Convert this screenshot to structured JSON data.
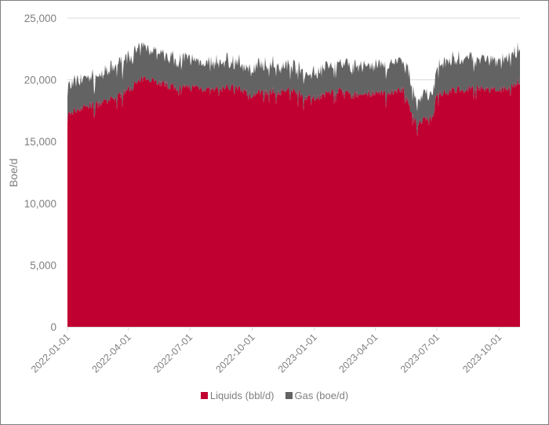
{
  "chart_data": {
    "type": "area",
    "stacked": true,
    "title": "",
    "xlabel": "",
    "ylabel": "Boe/d",
    "ylim": [
      0,
      25000
    ],
    "yticks": [
      0,
      5000,
      10000,
      15000,
      20000,
      25000
    ],
    "ytick_labels": [
      "0",
      "5,000",
      "10,000",
      "15,000",
      "20,000",
      "25,000"
    ],
    "xtick_labels": [
      "2022-01-01",
      "2022-04-01",
      "2022-07-01",
      "2022-10-01",
      "2023-01-01",
      "2023-04-01",
      "2023-07-01",
      "2023-10-01"
    ],
    "x_range": [
      "2022-01-01",
      "2023-11-01"
    ],
    "grid": "horizontal",
    "legend_position": "bottom",
    "x": [
      "2022-01-01",
      "2022-01-15",
      "2022-02-01",
      "2022-02-15",
      "2022-03-01",
      "2022-03-15",
      "2022-04-01",
      "2022-04-15",
      "2022-05-01",
      "2022-05-15",
      "2022-06-01",
      "2022-06-15",
      "2022-07-01",
      "2022-07-15",
      "2022-08-01",
      "2022-08-15",
      "2022-09-01",
      "2022-09-15",
      "2022-10-01",
      "2022-10-15",
      "2022-11-01",
      "2022-11-15",
      "2022-12-01",
      "2022-12-15",
      "2023-01-01",
      "2023-01-15",
      "2023-02-01",
      "2023-02-15",
      "2023-03-01",
      "2023-03-15",
      "2023-04-01",
      "2023-04-15",
      "2023-05-01",
      "2023-05-15",
      "2023-05-25",
      "2023-06-01",
      "2023-06-15",
      "2023-06-25",
      "2023-07-01",
      "2023-07-15",
      "2023-08-01",
      "2023-08-15",
      "2023-09-01",
      "2023-09-15",
      "2023-10-01",
      "2023-10-15",
      "2023-11-01"
    ],
    "series": [
      {
        "name": "Liquids (bbl/d)",
        "color": "#c00030",
        "values": [
          17100,
          17600,
          17900,
          18000,
          18200,
          18600,
          19200,
          19800,
          20200,
          19800,
          19500,
          19300,
          19400,
          19400,
          19100,
          19300,
          19400,
          19200,
          18800,
          19000,
          19100,
          19000,
          19200,
          18700,
          18500,
          18800,
          19100,
          19000,
          18700,
          18900,
          18900,
          18800,
          19100,
          19200,
          17200,
          16500,
          16800,
          16900,
          18900,
          19000,
          19200,
          19300,
          19300,
          19200,
          19100,
          19400,
          19900
        ]
      },
      {
        "name": "Gas (boe/d)",
        "color": "#636363",
        "values": [
          2300,
          2300,
          2300,
          2300,
          2400,
          2600,
          2600,
          2500,
          2500,
          2400,
          2400,
          2300,
          2300,
          2200,
          2200,
          2200,
          2100,
          2100,
          2100,
          2200,
          2200,
          2100,
          2100,
          2000,
          2000,
          2200,
          2200,
          2300,
          2200,
          2300,
          2300,
          2300,
          2400,
          2500,
          2300,
          1900,
          1900,
          1900,
          2500,
          2500,
          2500,
          2500,
          2400,
          2400,
          2300,
          2400,
          2500
        ]
      }
    ]
  },
  "legend": {
    "items": [
      {
        "label": "Liquids (bbl/d)",
        "color": "#c00030"
      },
      {
        "label": "Gas (boe/d)",
        "color": "#636363"
      }
    ]
  }
}
